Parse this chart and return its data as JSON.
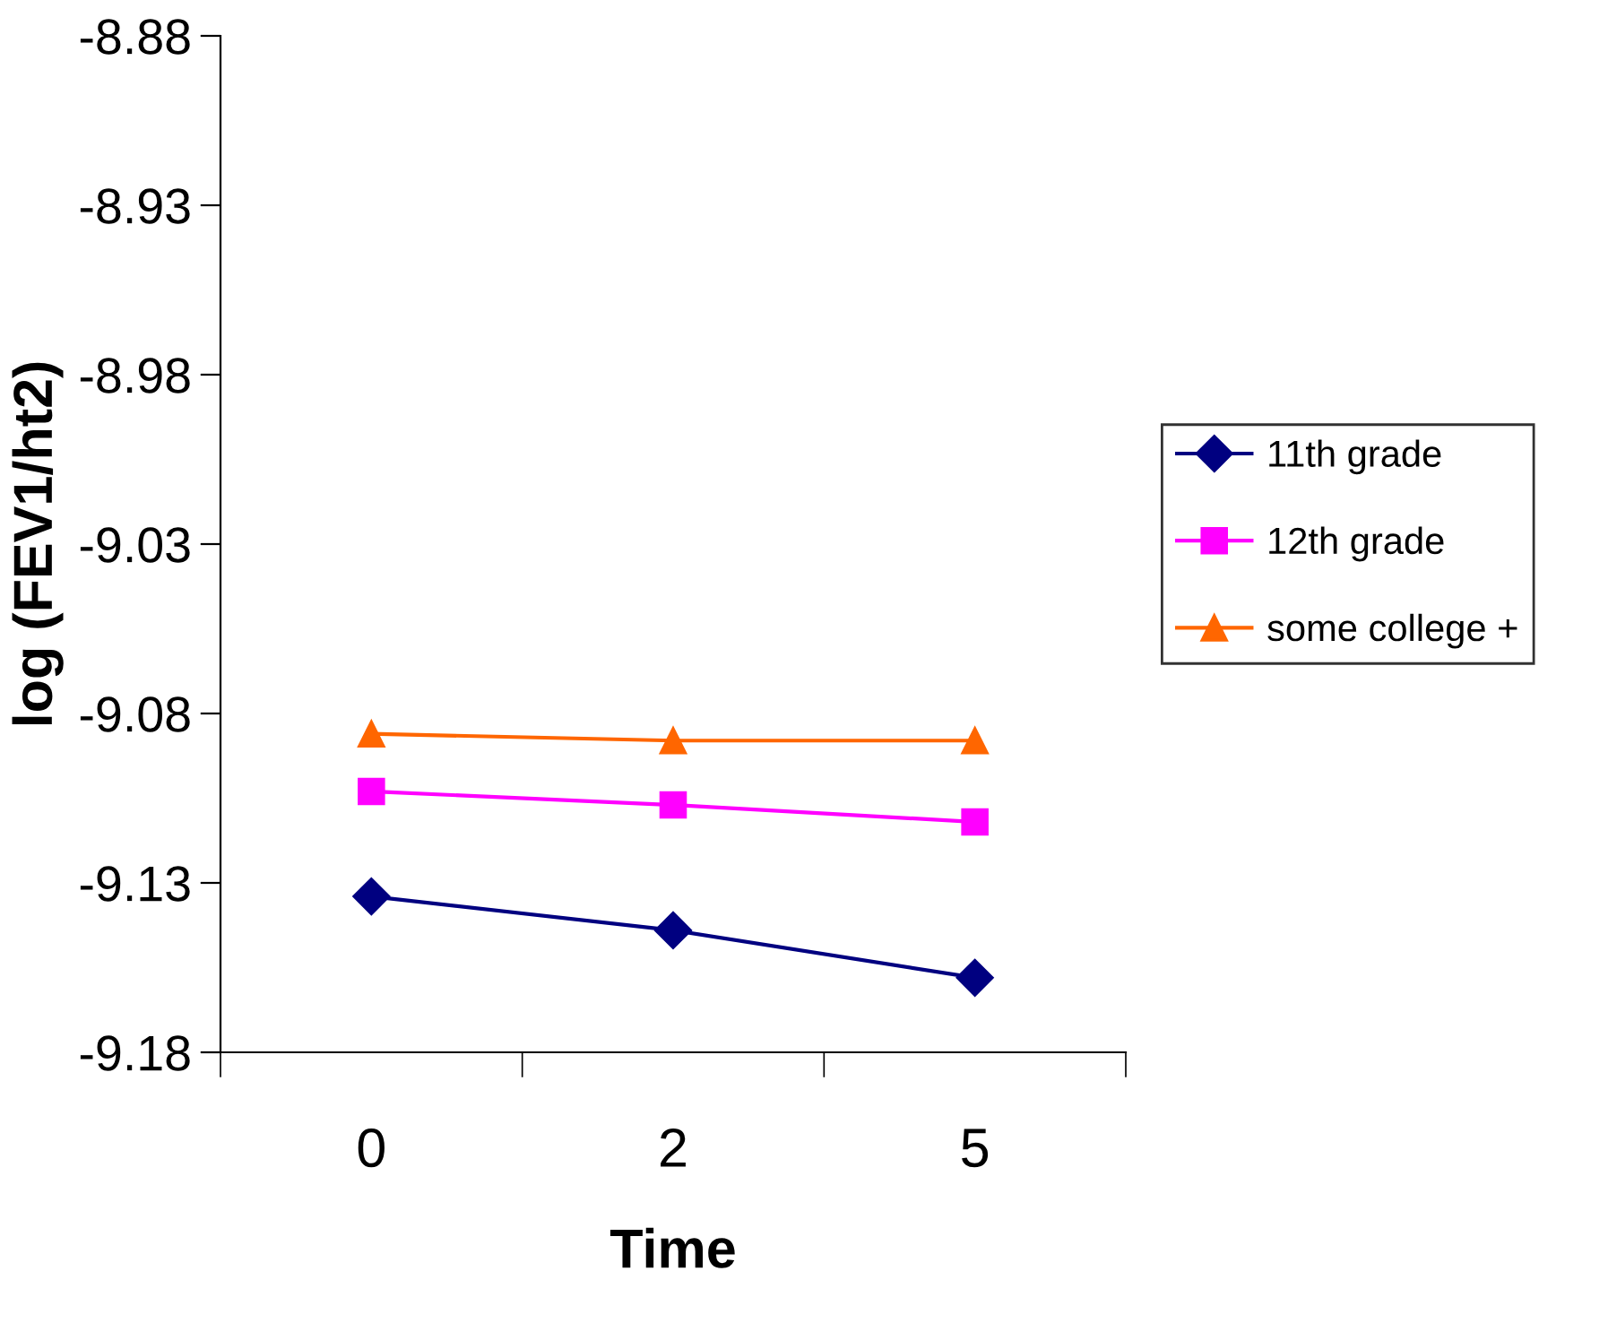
{
  "chart_data": {
    "type": "line",
    "xlabel": "Time",
    "ylabel": "log (FEV1/ht2)",
    "categories": [
      "0",
      "2",
      "5"
    ],
    "series": [
      {
        "name": "11th grade",
        "color": "#000080",
        "marker": "diamond",
        "values": [
          -9.134,
          -9.144,
          -9.158
        ]
      },
      {
        "name": "12th grade",
        "color": "#ff00ff",
        "marker": "square",
        "values": [
          -9.103,
          -9.107,
          -9.112
        ]
      },
      {
        "name": "some college +",
        "color": "#ff6600",
        "marker": "triangle",
        "values": [
          -9.086,
          -9.088,
          -9.088
        ]
      }
    ],
    "ylim": [
      -9.18,
      -8.88
    ],
    "yticks": [
      -8.88,
      -8.93,
      -8.98,
      -9.03,
      -9.08,
      -9.13,
      -9.18
    ],
    "grid": false,
    "legend": "right",
    "line_style": "solid"
  }
}
